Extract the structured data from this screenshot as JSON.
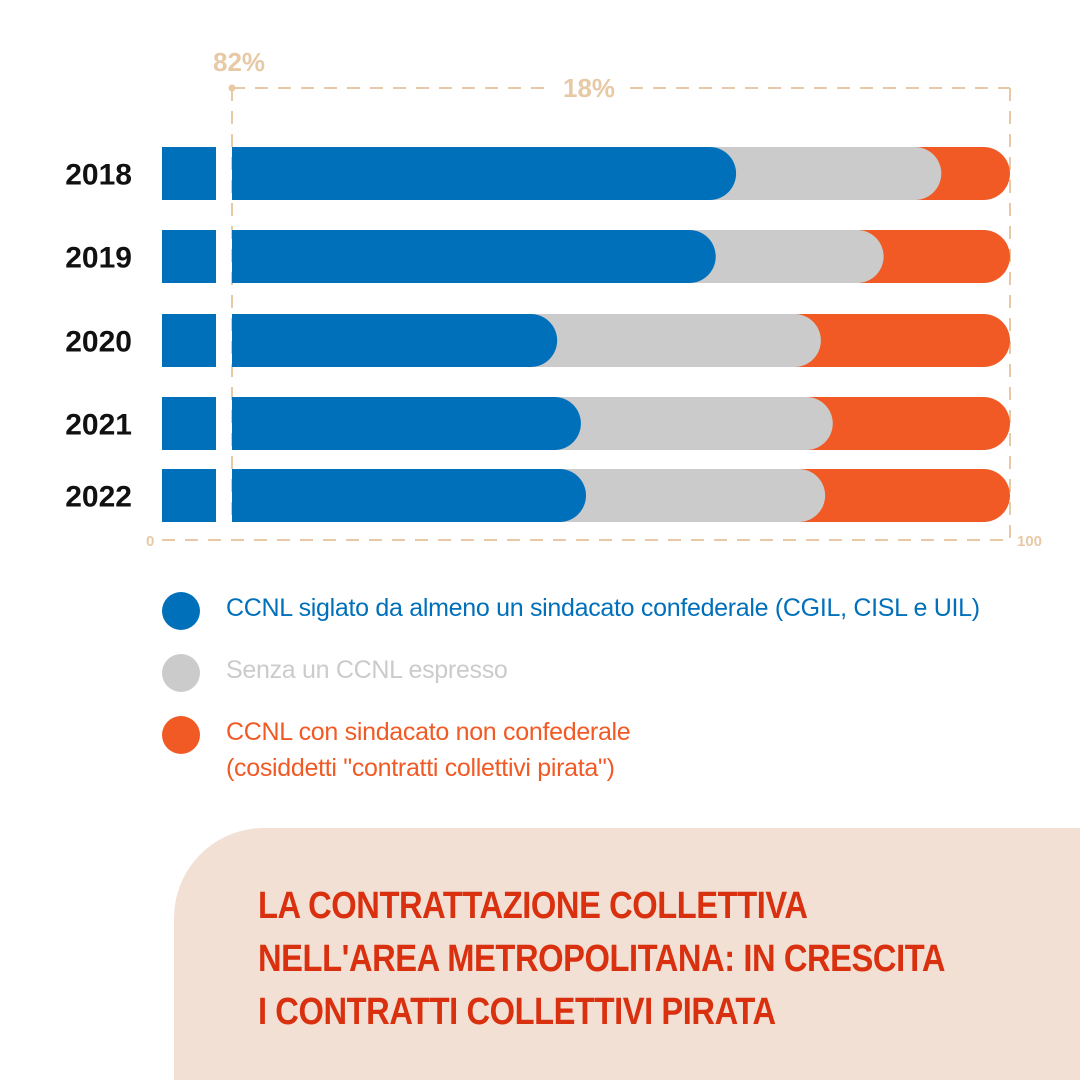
{
  "colors": {
    "confederal": "#0070BB",
    "none": "#CBCBCB",
    "pirate": "#F15A24",
    "annotation": "#E8C9A6",
    "title_text": "#D9300F",
    "title_panel": "#F2E0D4",
    "year_text": "#111111"
  },
  "chart_data": {
    "type": "bar",
    "orientation": "horizontal",
    "stacked": true,
    "categories": [
      "2018",
      "2019",
      "2020",
      "2021",
      "2022"
    ],
    "series": [
      {
        "name": "CCNL siglato da almeno un sindacato confederale (CGIL, CISL e UIL)",
        "key": "confederal",
        "values": [
          67.7,
          65.3,
          46.6,
          49.4,
          50.0
        ]
      },
      {
        "name": "Senza un CCNL espresso",
        "key": "none",
        "values": [
          24.2,
          19.8,
          31.1,
          29.7,
          28.2
        ]
      },
      {
        "name": "CCNL con sindacato non confederale (cosiddetti \"contratti collettivi pirata\")",
        "key": "pirate",
        "values": [
          8.1,
          14.9,
          22.3,
          20.9,
          21.8
        ]
      }
    ],
    "xlim": [
      0,
      100
    ],
    "x_ticks": [
      "0",
      "100"
    ],
    "axis_break_at": 6,
    "annotations": [
      {
        "text": "82%",
        "position": "top-left"
      },
      {
        "text": "18%",
        "position": "top-center"
      }
    ],
    "grid": false,
    "legend_position": "bottom"
  },
  "legend": [
    {
      "key": "confederal",
      "lines": [
        "CCNL siglato da almeno un sindacato confederale (CGIL, CISL e UIL)"
      ]
    },
    {
      "key": "none",
      "lines": [
        "Senza un CCNL espresso"
      ]
    },
    {
      "key": "pirate",
      "lines": [
        "CCNL con sindacato non confederale",
        "(cosiddetti \"contratti collettivi pirata\")"
      ]
    }
  ],
  "title": {
    "lines": [
      "LA CONTRATTAZIONE COLLETTIVA",
      "NELL'AREA METROPOLITANA: IN CRESCITA",
      "I CONTRATTI COLLETTIVI PIRATA"
    ]
  }
}
